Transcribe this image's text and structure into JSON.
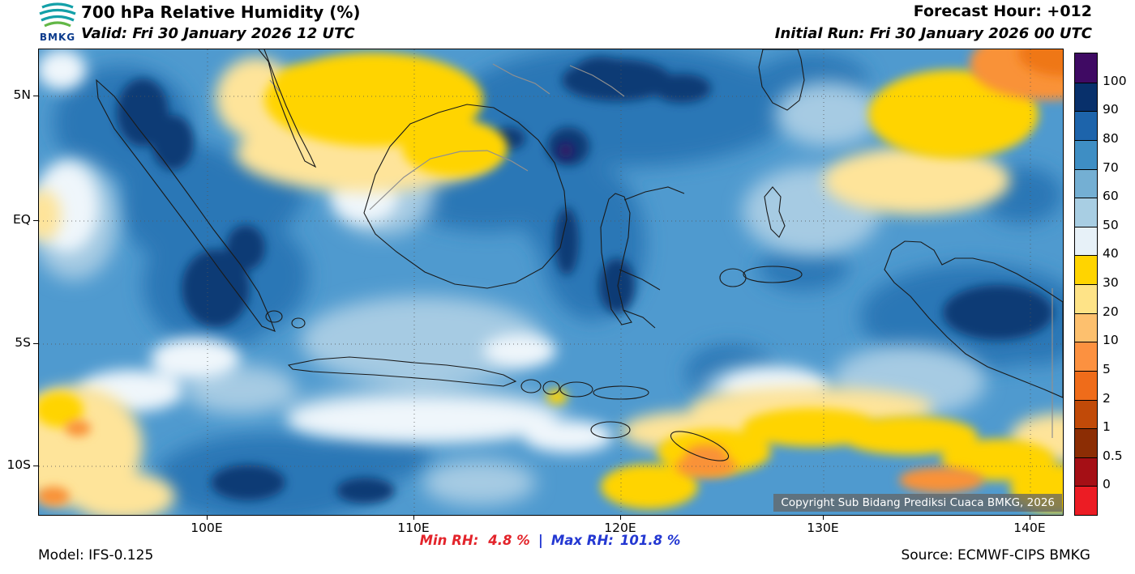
{
  "header": {
    "logo_text": "BMKG",
    "title": "700 hPa Relative Humidity (%)",
    "valid_line": "Valid: Fri 30 January 2026 12 UTC",
    "forecast_hour": "Forecast Hour: +012",
    "initial_run": "Initial Run: Fri 30 January 2026 00 UTC"
  },
  "map": {
    "x_ticks": [
      "100E",
      "110E",
      "120E",
      "130E",
      "140E"
    ],
    "y_ticks": [
      "5N",
      "EQ",
      "5S",
      "10S"
    ],
    "copyright": "Copyright Sub Bidang Prediksi Cuaca BMKG, 2026"
  },
  "footer": {
    "model": "Model: IFS-0.125",
    "min_rh_label": "Min RH:",
    "min_rh_value": "4.8 %",
    "separator": "|",
    "max_rh_label": "Max RH:",
    "max_rh_value": "101.8 %",
    "source": "Source: ECMWF-CIPS BMKG",
    "min_color": "#e3242b",
    "max_color": "#2438d2"
  },
  "chart_data": {
    "type": "heatmap",
    "title": "700 hPa Relative Humidity (%)",
    "variable": "Relative Humidity",
    "level_hpa": 700,
    "unit": "%",
    "valid_time": "Fri 30 January 2026 12 UTC",
    "initial_run": "Fri 30 January 2026 00 UTC",
    "forecast_hour": "+012",
    "model": "IFS-0.125",
    "source": "ECMWF-CIPS BMKG",
    "min_rh": 4.8,
    "max_rh": 101.8,
    "extent": {
      "lon_min": 92,
      "lon_max": 141.5,
      "lat_min": -12,
      "lat_max": 7
    },
    "x_axis": {
      "ticks": [
        "100E",
        "110E",
        "120E",
        "130E",
        "140E"
      ]
    },
    "y_axis": {
      "ticks": [
        "5N",
        "EQ",
        "5S",
        "10S"
      ]
    },
    "colorbar": {
      "levels": [
        "100",
        "90",
        "80",
        "70",
        "60",
        "50",
        "40",
        "30",
        "20",
        "10",
        "5",
        "2",
        "1",
        "0.5",
        "0"
      ],
      "colors": [
        "#3f0a63",
        "#08306b",
        "#1d64ab",
        "#3e8ec4",
        "#74afd3",
        "#a8cee3",
        "#e7f1f8",
        "#ffd400",
        "#fee387",
        "#fdc06e",
        "#fc9140",
        "#ef6c1a",
        "#c14a08",
        "#8c2d04",
        "#a50f15",
        "#ec1c24"
      ],
      "legend_position": "right"
    },
    "pattern_notes": [
      "Dry (yellow/orange, RH 10-40%) areas: north of Malacca Strait top-left, far northeast corner, southern band near Timor and bottom-right, bottom-left corner",
      "Very moist (dark blue/navy, RH 80-100%) areas: Sumatra, north of Borneo, central Sulawesi and Makassar Strait, eastern Papua, southwest corner seas",
      "Most of the domain is moist blue (RH 60-90%) with pale (RH 40-60%) bands south of Java and in the Java Sea"
    ]
  }
}
